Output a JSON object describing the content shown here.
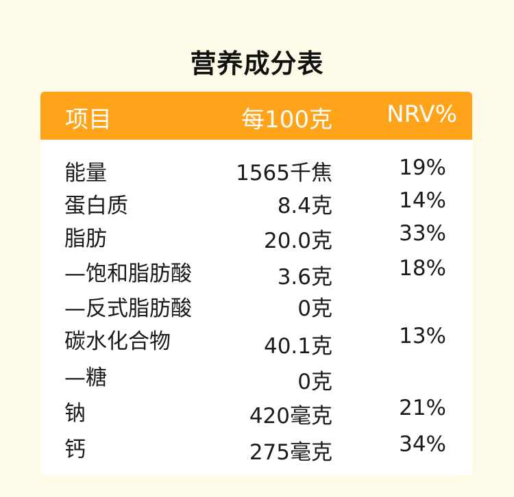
{
  "title": "营养成分表",
  "colors": {
    "header_bg": "#ffa31a",
    "header_text": "#ffffff",
    "page_bg": "#fdfbe8",
    "card_bg": "#ffffff"
  },
  "table": {
    "headers": {
      "item": "项目",
      "per": "每100克",
      "nrv": "NRV%"
    },
    "rows": [
      {
        "name": "能量",
        "amount": "1565千焦",
        "nrv": "19%"
      },
      {
        "name": "蛋白质",
        "amount": "8.4克",
        "nrv": "14%"
      },
      {
        "name": "脂肪",
        "amount": "20.0克",
        "nrv": "33%"
      },
      {
        "name": "—饱和脂肪酸",
        "amount": "3.6克",
        "nrv": "18%"
      },
      {
        "name": "—反式脂肪酸",
        "amount": "0克",
        "nrv": ""
      },
      {
        "name": "碳水化合物",
        "amount": "40.1克",
        "nrv": "13%"
      },
      {
        "name": "—糖",
        "amount": "0克",
        "nrv": ""
      },
      {
        "name": "钠",
        "amount": "420毫克",
        "nrv": "21%"
      },
      {
        "name": "钙",
        "amount": "275毫克",
        "nrv": "34%"
      }
    ]
  }
}
